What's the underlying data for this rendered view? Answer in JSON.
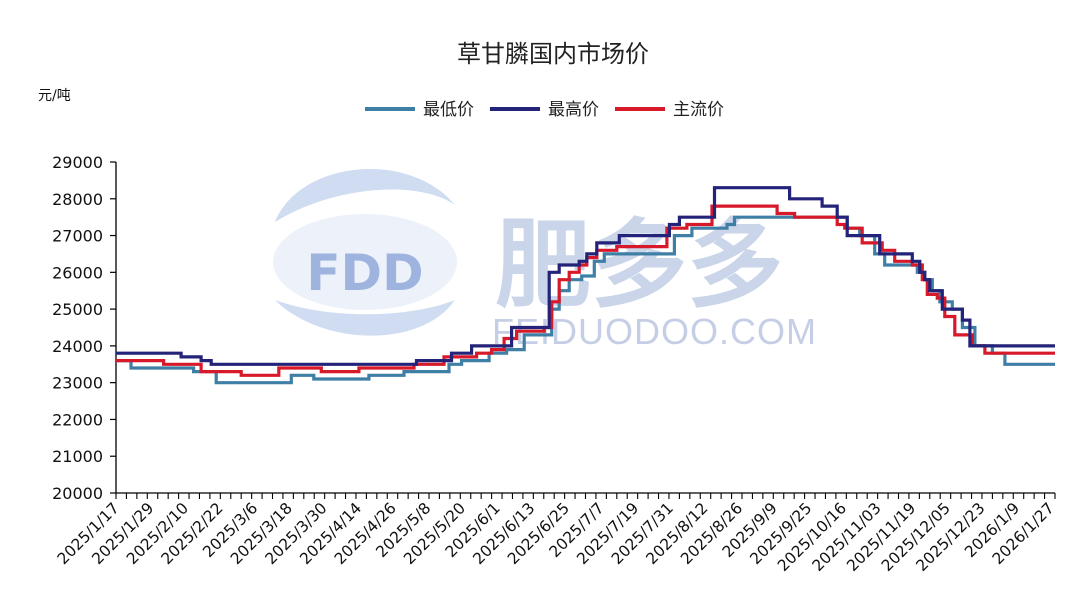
{
  "chart_data": {
    "type": "line",
    "title": "草甘膦国内市场价",
    "ylabel": "元/吨",
    "xlabel": "",
    "ylim": [
      20000,
      29000
    ],
    "yticks": [
      20000,
      21000,
      22000,
      23000,
      24000,
      25000,
      26000,
      27000,
      28000,
      29000
    ],
    "grid": false,
    "legend_position": "top-center",
    "x_tick_labels": [
      "2025/1/17",
      "2025/1/29",
      "2025/2/10",
      "2025/2/22",
      "2025/3/6",
      "2025/3/18",
      "2025/3/30",
      "2025/4/14",
      "2025/4/26",
      "2025/5/8",
      "2025/5/20",
      "2025/6/1",
      "2025/6/13",
      "2025/6/25",
      "2025/7/7",
      "2025/7/19",
      "2025/7/31",
      "2025/8/12",
      "2025/8/26",
      "2025/9/9",
      "2025/9/25",
      "2025/10/16",
      "2025/11/03",
      "2025/11/19",
      "2025/12/05",
      "2025/12/23",
      "2026/1/9",
      "2026/1/27"
    ],
    "x_range": [
      "2025/1/17",
      "2026/1/27"
    ],
    "series": [
      {
        "name": "最低价",
        "color": "#3f7fa6",
        "points": [
          [
            "2025/1/17",
            23600
          ],
          [
            "2025/1/23",
            23400
          ],
          [
            "2025/2/17",
            23300
          ],
          [
            "2025/2/26",
            23000
          ],
          [
            "2025/3/23",
            23000
          ],
          [
            "2025/3/28",
            23200
          ],
          [
            "2025/4/6",
            23100
          ],
          [
            "2025/4/26",
            23100
          ],
          [
            "2025/4/28",
            23200
          ],
          [
            "2025/5/12",
            23300
          ],
          [
            "2025/5/30",
            23500
          ],
          [
            "2025/6/4",
            23600
          ],
          [
            "2025/6/15",
            23800
          ],
          [
            "2025/6/22",
            23900
          ],
          [
            "2025/6/29",
            24300
          ],
          [
            "2025/7/8",
            24300
          ],
          [
            "2025/7/10",
            25000
          ],
          [
            "2025/7/13",
            25500
          ],
          [
            "2025/7/17",
            25800
          ],
          [
            "2025/7/22",
            25900
          ],
          [
            "2025/7/27",
            26300
          ],
          [
            "2025/7/31",
            26500
          ],
          [
            "2025/8/26",
            26500
          ],
          [
            "2025/8/28",
            27000
          ],
          [
            "2025/9/4",
            27200
          ],
          [
            "2025/9/18",
            27300
          ],
          [
            "2025/9/21",
            27500
          ],
          [
            "2025/10/14",
            27500
          ],
          [
            "2025/10/16",
            27500
          ],
          [
            "2025/10/29",
            27500
          ],
          [
            "2025/11/5",
            27200
          ],
          [
            "2025/11/10",
            27000
          ],
          [
            "2025/11/16",
            26500
          ],
          [
            "2025/11/20",
            26200
          ],
          [
            "2025/12/1",
            26200
          ],
          [
            "2025/12/3",
            26000
          ],
          [
            "2025/12/6",
            25800
          ],
          [
            "2025/12/9",
            25500
          ],
          [
            "2025/12/12",
            25200
          ],
          [
            "2025/12/17",
            25000
          ],
          [
            "2025/12/21",
            24500
          ],
          [
            "2025/12/26",
            24000
          ],
          [
            "2026/1/2",
            23800
          ],
          [
            "2026/1/7",
            23500
          ],
          [
            "2026/1/27",
            23500
          ]
        ]
      },
      {
        "name": "最高价",
        "color": "#23237a",
        "points": [
          [
            "2025/1/17",
            23800
          ],
          [
            "2025/2/12",
            23700
          ],
          [
            "2025/2/20",
            23600
          ],
          [
            "2025/2/24",
            23500
          ],
          [
            "2025/5/17",
            23600
          ],
          [
            "2025/5/31",
            23800
          ],
          [
            "2025/6/8",
            24000
          ],
          [
            "2025/6/24",
            24500
          ],
          [
            "2025/7/4",
            24500
          ],
          [
            "2025/7/9",
            26000
          ],
          [
            "2025/7/13",
            26200
          ],
          [
            "2025/7/21",
            26300
          ],
          [
            "2025/7/24",
            26500
          ],
          [
            "2025/7/28",
            26800
          ],
          [
            "2025/8/6",
            27000
          ],
          [
            "2025/8/26",
            27300
          ],
          [
            "2025/8/30",
            27500
          ],
          [
            "2025/9/12",
            27500
          ],
          [
            "2025/9/13",
            28300
          ],
          [
            "2025/10/13",
            28000
          ],
          [
            "2025/10/26",
            27800
          ],
          [
            "2025/11/1",
            27500
          ],
          [
            "2025/11/5",
            27000
          ],
          [
            "2025/11/18",
            26500
          ],
          [
            "2025/11/24",
            26500
          ],
          [
            "2025/12/1",
            26300
          ],
          [
            "2025/12/4",
            26000
          ],
          [
            "2025/12/6",
            25800
          ],
          [
            "2025/12/8",
            25500
          ],
          [
            "2025/12/13",
            25000
          ],
          [
            "2025/12/21",
            24700
          ],
          [
            "2025/12/24",
            24000
          ],
          [
            "2026/1/27",
            24000
          ]
        ]
      },
      {
        "name": "主流价",
        "color": "#d7192a",
        "points": [
          [
            "2025/1/17",
            23600
          ],
          [
            "2025/2/5",
            23500
          ],
          [
            "2025/2/20",
            23300
          ],
          [
            "2025/3/8",
            23200
          ],
          [
            "2025/3/23",
            23400
          ],
          [
            "2025/4/9",
            23300
          ],
          [
            "2025/4/24",
            23400
          ],
          [
            "2025/5/16",
            23500
          ],
          [
            "2025/5/28",
            23700
          ],
          [
            "2025/6/10",
            23800
          ],
          [
            "2025/6/16",
            23900
          ],
          [
            "2025/6/21",
            24200
          ],
          [
            "2025/6/26",
            24400
          ],
          [
            "2025/7/7",
            24500
          ],
          [
            "2025/7/10",
            25200
          ],
          [
            "2025/7/13",
            25800
          ],
          [
            "2025/7/17",
            26000
          ],
          [
            "2025/7/21",
            26200
          ],
          [
            "2025/7/24",
            26400
          ],
          [
            "2025/7/28",
            26600
          ],
          [
            "2025/8/5",
            26700
          ],
          [
            "2025/8/25",
            27200
          ],
          [
            "2025/9/2",
            27300
          ],
          [
            "2025/9/12",
            27800
          ],
          [
            "2025/10/8",
            27600
          ],
          [
            "2025/10/15",
            27500
          ],
          [
            "2025/11/1",
            27300
          ],
          [
            "2025/11/4",
            27200
          ],
          [
            "2025/11/11",
            26800
          ],
          [
            "2025/11/19",
            26600
          ],
          [
            "2025/11/24",
            26300
          ],
          [
            "2025/12/1",
            26200
          ],
          [
            "2025/12/5",
            25800
          ],
          [
            "2025/12/7",
            25400
          ],
          [
            "2025/12/11",
            25300
          ],
          [
            "2025/12/14",
            24800
          ],
          [
            "2025/12/18",
            24300
          ],
          [
            "2025/12/25",
            24000
          ],
          [
            "2025/12/30",
            23800
          ],
          [
            "2026/1/27",
            23800
          ]
        ]
      }
    ]
  },
  "watermark": {
    "logo_text": "FDD",
    "cn_text": "肥多多",
    "en_text": "FEIDUODOO.COM"
  }
}
